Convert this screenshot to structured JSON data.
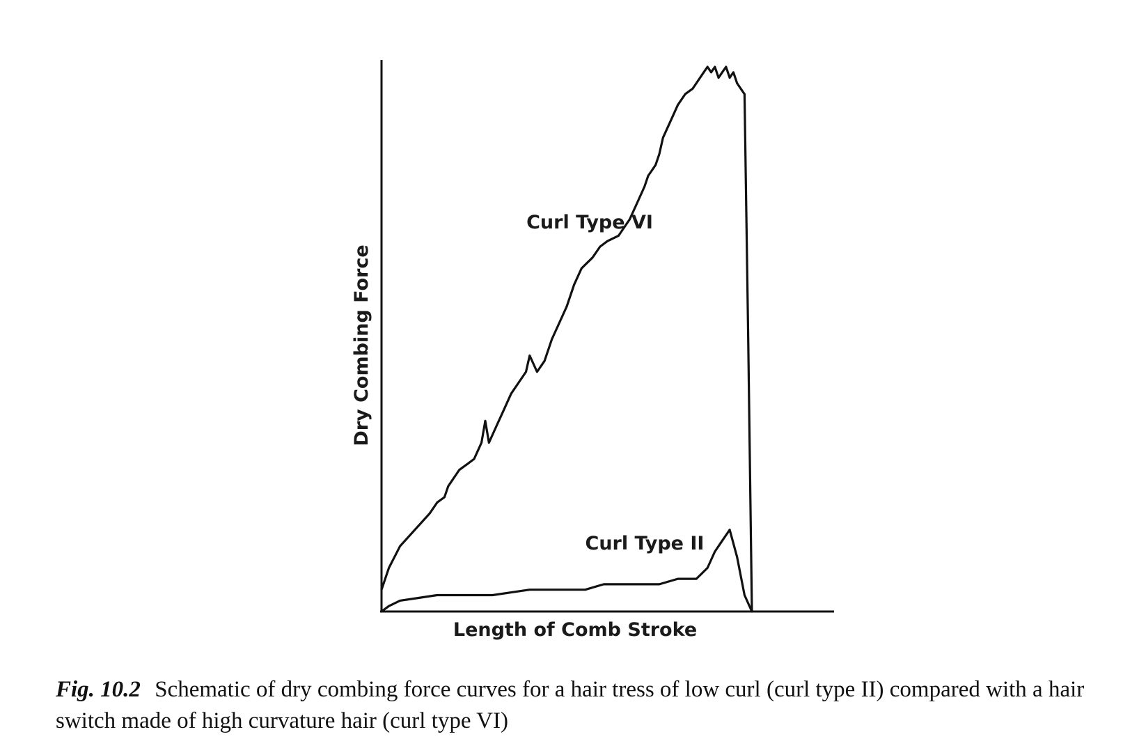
{
  "caption": {
    "label": "Fig. 10.2",
    "text": "Schematic of dry combing force curves for a hair tress of low curl (curl type II) compared with a hair switch made of high curvature hair (curl type VI)"
  },
  "chart_data": {
    "type": "line",
    "title": "",
    "xlabel": "Length of Comb Stroke",
    "ylabel": "Dry Combing Force",
    "xlim": [
      0,
      100
    ],
    "ylim": [
      0,
      100
    ],
    "grid": false,
    "legend": "none",
    "series": [
      {
        "name": "Curl Type VI",
        "x": [
          0,
          2,
          5,
          9,
          13,
          15,
          17,
          18,
          19,
          20,
          21,
          23,
          25,
          27,
          28,
          29,
          31,
          33,
          35,
          37,
          39,
          40,
          42,
          44,
          46,
          48,
          50,
          52,
          54,
          57,
          59,
          61,
          64,
          67,
          69,
          71,
          72,
          73,
          74,
          75,
          76,
          78,
          80,
          82,
          84,
          85,
          86,
          87,
          88,
          89,
          90,
          91,
          92,
          93,
          94,
          95,
          96,
          97,
          98,
          99,
          100
        ],
        "y": [
          4,
          8,
          12,
          15,
          18,
          20,
          21,
          23,
          24,
          25,
          26,
          27,
          28,
          31,
          35,
          31,
          34,
          37,
          40,
          42,
          44,
          47,
          44,
          46,
          50,
          53,
          56,
          60,
          63,
          65,
          67,
          68,
          69,
          72,
          75,
          78,
          80,
          81,
          82,
          84,
          87,
          90,
          93,
          95,
          96,
          97,
          98,
          99,
          100,
          99,
          100,
          98,
          99,
          100,
          98,
          99,
          97,
          96,
          95,
          50,
          0
        ],
        "peak_x": 98
      },
      {
        "name": "Curl Type II",
        "x": [
          0,
          2,
          5,
          10,
          15,
          20,
          25,
          30,
          35,
          40,
          45,
          50,
          55,
          60,
          65,
          70,
          75,
          80,
          85,
          88,
          90,
          92,
          94,
          96,
          98,
          100
        ],
        "y": [
          0,
          1,
          2,
          2.5,
          3,
          3,
          3,
          3,
          3.5,
          4,
          4,
          4,
          4,
          5,
          5,
          5,
          5,
          6,
          6,
          8,
          11,
          13,
          15,
          10,
          3,
          0
        ]
      }
    ]
  }
}
